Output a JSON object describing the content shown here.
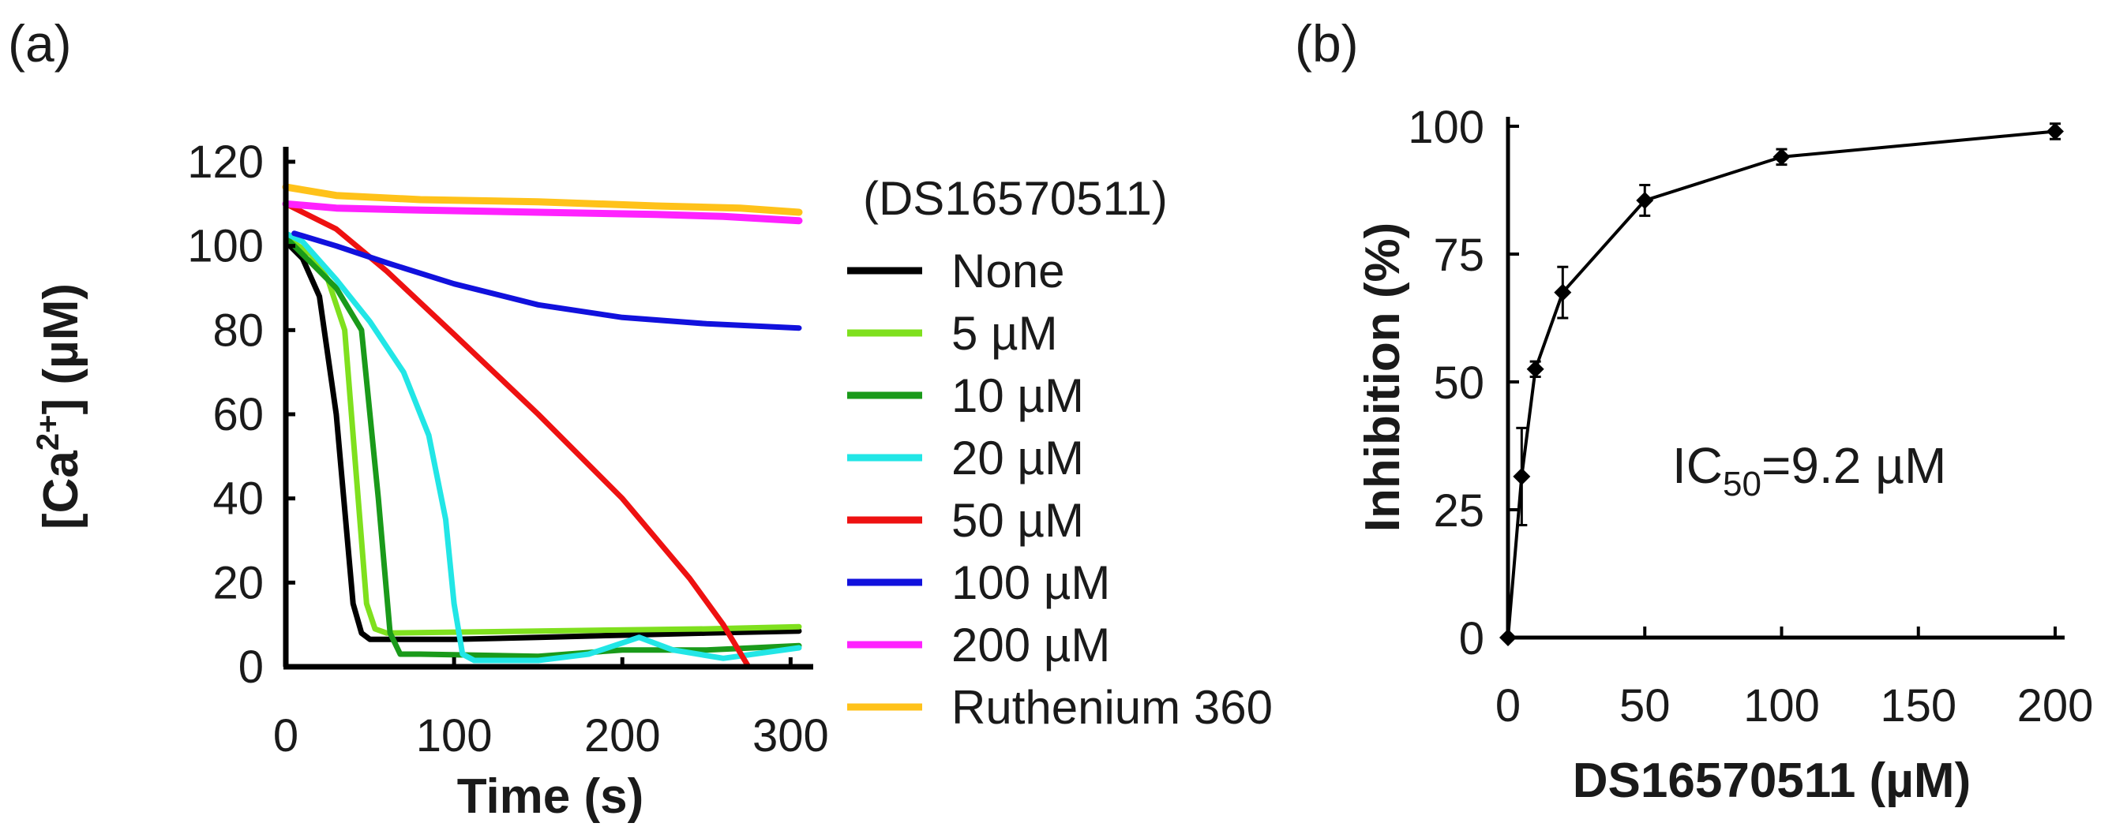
{
  "panels": {
    "a": "(a)",
    "b": "(b)"
  },
  "chart_data": [
    {
      "id": "a",
      "type": "line",
      "title": "",
      "xlabel": "Time (s)",
      "ylabel_main": "[Ca",
      "ylabel_sup": "2+",
      "ylabel_end": "] (µM)",
      "xlim": [
        0,
        305
      ],
      "ylim": [
        0,
        120
      ],
      "xticks": [
        "0",
        "100",
        "200",
        "300"
      ],
      "xtick_values": [
        0,
        100,
        200,
        300
      ],
      "yticks": [
        "0",
        "20",
        "40",
        "60",
        "80",
        "100",
        "120"
      ],
      "ytick_values": [
        0,
        20,
        40,
        60,
        80,
        100,
        120
      ],
      "legend_title": "(DS16570511)",
      "series": [
        {
          "name": "None",
          "color": "#000000",
          "points": [
            [
              0,
              101
            ],
            [
              10,
              97
            ],
            [
              20,
              88
            ],
            [
              30,
              60
            ],
            [
              40,
              15
            ],
            [
              45,
              8
            ],
            [
              50,
              6.5
            ],
            [
              100,
              6.5
            ],
            [
              150,
              7
            ],
            [
              200,
              7.5
            ],
            [
              250,
              8
            ],
            [
              305,
              8.5
            ]
          ]
        },
        {
          "name": "5 µM",
          "color": "#7fe01e",
          "points": [
            [
              0,
              102
            ],
            [
              15,
              98
            ],
            [
              25,
              92
            ],
            [
              35,
              80
            ],
            [
              42,
              45
            ],
            [
              48,
              15
            ],
            [
              53,
              9
            ],
            [
              60,
              8
            ],
            [
              150,
              8.5
            ],
            [
              250,
              9
            ],
            [
              305,
              9.5
            ]
          ]
        },
        {
          "name": "10 µM",
          "color": "#1a9a1a",
          "points": [
            [
              0,
              102
            ],
            [
              15,
              96
            ],
            [
              30,
              90
            ],
            [
              45,
              80
            ],
            [
              55,
              40
            ],
            [
              62,
              8
            ],
            [
              68,
              3
            ],
            [
              80,
              3
            ],
            [
              150,
              2.5
            ],
            [
              200,
              4
            ],
            [
              250,
              4
            ],
            [
              305,
              5
            ]
          ]
        },
        {
          "name": "20 µM",
          "color": "#22e6e6",
          "points": [
            [
              0,
              103
            ],
            [
              10,
              101
            ],
            [
              30,
              92
            ],
            [
              50,
              82
            ],
            [
              70,
              70
            ],
            [
              85,
              55
            ],
            [
              95,
              35
            ],
            [
              100,
              15
            ],
            [
              105,
              3
            ],
            [
              112,
              1.5
            ],
            [
              150,
              1.5
            ],
            [
              180,
              3
            ],
            [
              210,
              7
            ],
            [
              230,
              4
            ],
            [
              260,
              2
            ],
            [
              305,
              4.5
            ]
          ]
        },
        {
          "name": "50 µM",
          "color": "#ee1111",
          "points": [
            [
              0,
              110
            ],
            [
              30,
              104
            ],
            [
              60,
              94
            ],
            [
              100,
              79
            ],
            [
              150,
              60
            ],
            [
              200,
              40
            ],
            [
              240,
              21
            ],
            [
              260,
              10
            ],
            [
              275,
              0
            ]
          ]
        },
        {
          "name": "100 µM",
          "color": "#1111dd",
          "points": [
            [
              5,
              103
            ],
            [
              30,
              100
            ],
            [
              60,
              96
            ],
            [
              100,
              91
            ],
            [
              150,
              86
            ],
            [
              200,
              83
            ],
            [
              250,
              81.5
            ],
            [
              305,
              80.5
            ]
          ]
        },
        {
          "name": "200 µM",
          "color": "#ff22ff",
          "points": [
            [
              0,
              110
            ],
            [
              30,
              109
            ],
            [
              80,
              108.5
            ],
            [
              150,
              108
            ],
            [
              220,
              107.5
            ],
            [
              260,
              107
            ],
            [
              305,
              106
            ]
          ]
        },
        {
          "name": "Ruthenium 360",
          "color": "#ffc21a",
          "points": [
            [
              0,
              114
            ],
            [
              30,
              112
            ],
            [
              80,
              111
            ],
            [
              150,
              110.5
            ],
            [
              220,
              109.5
            ],
            [
              270,
              109
            ],
            [
              305,
              108
            ]
          ]
        }
      ]
    },
    {
      "id": "b",
      "type": "line",
      "title": "",
      "xlabel": "DS16570511 (µM)",
      "ylabel": "Inhibition (%)",
      "xlim": [
        0,
        200
      ],
      "ylim": [
        0,
        100
      ],
      "xticks": [
        "0",
        "50",
        "100",
        "150",
        "200"
      ],
      "xtick_values": [
        0,
        50,
        100,
        150,
        200
      ],
      "yticks": [
        "0",
        "25",
        "50",
        "75",
        "100"
      ],
      "ytick_values": [
        0,
        25,
        50,
        75,
        100
      ],
      "annotation_main": "IC",
      "annotation_sub": "50",
      "annotation_end": "=9.2 µM",
      "series": [
        {
          "name": "Inhibition",
          "color": "#000000",
          "x": [
            0,
            5,
            10,
            20,
            50,
            100,
            200
          ],
          "y": [
            0,
            31.5,
            52.5,
            67.5,
            85.5,
            94,
            99
          ],
          "err": [
            0,
            9.5,
            1.5,
            5,
            3,
            1.5,
            1.5
          ]
        }
      ]
    }
  ]
}
